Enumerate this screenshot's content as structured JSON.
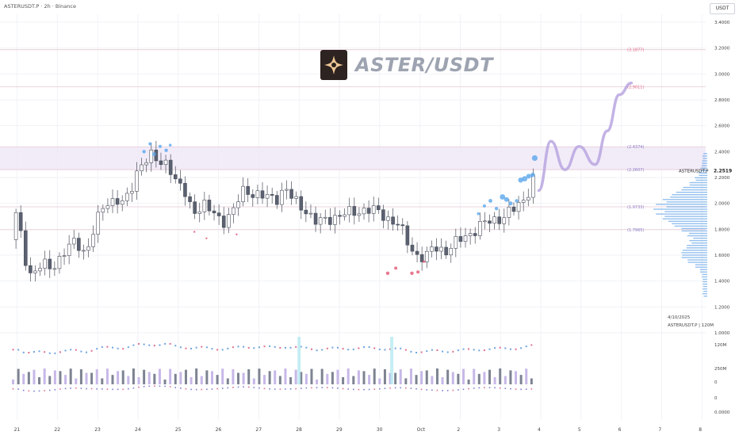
{
  "header": {
    "title": "ASTERUSDT.P · 2h · Binance"
  },
  "currency_button": "USDT",
  "banner": {
    "title": "ASTER/USDT",
    "logo_icon": "aster-star-logo-icon"
  },
  "price_label": {
    "symbol": "ASTERUSDT.P",
    "value": "2.2519"
  },
  "footnote": {
    "date": "4/10/2025",
    "text": "ASTERUSDT.P | 120M"
  },
  "colors": {
    "up": "#ffffff",
    "down": "#5b6170",
    "wick": "#4a4f5c",
    "projection": "#b8a6e0",
    "zone": "#efe7f6",
    "level": "#e6c9d3",
    "bubble": "#5aa6ec",
    "red_marker": "#e04a6a",
    "volume_profile": "#3d8de0",
    "grid": "#f0f2f5",
    "volume_up": "#c7b8e8",
    "volume_down": "#7d8391"
  },
  "chart_data": {
    "type": "candlestick",
    "title": "",
    "xlabel": "",
    "ylabel": "",
    "x_ticks": [
      "21",
      "22",
      "23",
      "24",
      "25",
      "26",
      "27",
      "28",
      "29",
      "30",
      "Oct",
      "2",
      "3",
      "4",
      "5",
      "6",
      "7",
      "8"
    ],
    "y_ticks": [
      "3.4000",
      "3.2000",
      "3.0000",
      "2.8000",
      "2.6000",
      "2.4000",
      "2.2000",
      "2.0000",
      "1.8000",
      "1.6000",
      "1.4000",
      "1.2000",
      "1.0000"
    ],
    "ylim": [
      1.0,
      3.4
    ],
    "levels": [
      {
        "label": "3.1877",
        "value": 3.1877,
        "color": "#e06c8b"
      },
      {
        "label": "2.9011",
        "value": 2.9011,
        "color": "#e06c8b"
      },
      {
        "label": "2.4374",
        "value": 2.4374,
        "color": "#8c7dc8"
      },
      {
        "label": "2.2607",
        "value": 2.2607,
        "color": "#8c7dc8"
      },
      {
        "label": "1.9733",
        "value": 1.9733,
        "color": "#8c7dc8"
      },
      {
        "label": "1.7965",
        "value": 1.7965,
        "color": "#8c7dc8"
      }
    ],
    "supply_zone": [
      2.2607,
      2.4374
    ],
    "close_path": [
      {
        "t": 0.0,
        "p": 1.72
      },
      {
        "t": 0.15,
        "p": 1.95
      },
      {
        "t": 0.3,
        "p": 1.62
      },
      {
        "t": 0.5,
        "p": 1.45
      },
      {
        "t": 0.75,
        "p": 1.52
      },
      {
        "t": 1.0,
        "p": 1.5
      },
      {
        "t": 1.3,
        "p": 1.62
      },
      {
        "t": 1.6,
        "p": 1.7
      },
      {
        "t": 1.85,
        "p": 1.62
      },
      {
        "t": 2.0,
        "p": 1.75
      },
      {
        "t": 2.3,
        "p": 1.98
      },
      {
        "t": 2.6,
        "p": 2.05
      },
      {
        "t": 2.8,
        "p": 1.98
      },
      {
        "t": 3.0,
        "p": 2.12
      },
      {
        "t": 3.2,
        "p": 2.32
      },
      {
        "t": 3.5,
        "p": 2.36
      },
      {
        "t": 3.7,
        "p": 2.3
      },
      {
        "t": 3.9,
        "p": 2.34
      },
      {
        "t": 4.05,
        "p": 2.18
      },
      {
        "t": 4.3,
        "p": 2.08
      },
      {
        "t": 4.5,
        "p": 1.95
      },
      {
        "t": 4.8,
        "p": 1.98
      },
      {
        "t": 5.0,
        "p": 1.92
      },
      {
        "t": 5.3,
        "p": 1.87
      },
      {
        "t": 5.5,
        "p": 1.93
      },
      {
        "t": 5.8,
        "p": 2.12
      },
      {
        "t": 6.0,
        "p": 2.08
      },
      {
        "t": 6.3,
        "p": 2.04
      },
      {
        "t": 6.6,
        "p": 2.05
      },
      {
        "t": 6.8,
        "p": 2.12
      },
      {
        "t": 7.0,
        "p": 2.02
      },
      {
        "t": 7.3,
        "p": 1.96
      },
      {
        "t": 7.6,
        "p": 1.84
      },
      {
        "t": 8.0,
        "p": 1.9
      },
      {
        "t": 8.4,
        "p": 1.92
      },
      {
        "t": 8.8,
        "p": 1.96
      },
      {
        "t": 9.0,
        "p": 1.94
      },
      {
        "t": 9.3,
        "p": 1.9
      },
      {
        "t": 9.6,
        "p": 1.84
      },
      {
        "t": 9.9,
        "p": 1.66
      },
      {
        "t": 10.1,
        "p": 1.6
      },
      {
        "t": 10.3,
        "p": 1.58
      },
      {
        "t": 10.5,
        "p": 1.66
      },
      {
        "t": 10.8,
        "p": 1.64
      },
      {
        "t": 11.0,
        "p": 1.68
      },
      {
        "t": 11.3,
        "p": 1.75
      },
      {
        "t": 11.6,
        "p": 1.82
      },
      {
        "t": 11.9,
        "p": 1.86
      },
      {
        "t": 12.2,
        "p": 1.9
      },
      {
        "t": 12.5,
        "p": 1.95
      },
      {
        "t": 12.75,
        "p": 2.04
      },
      {
        "t": 12.95,
        "p": 2.18
      },
      {
        "t": 13.05,
        "p": 2.3
      }
    ],
    "projection": [
      {
        "t": 13.1,
        "p": 2.1
      },
      {
        "t": 13.4,
        "p": 2.48
      },
      {
        "t": 13.75,
        "p": 2.26
      },
      {
        "t": 14.1,
        "p": 2.44
      },
      {
        "t": 14.5,
        "p": 2.3
      },
      {
        "t": 14.8,
        "p": 2.56
      },
      {
        "t": 15.1,
        "p": 2.84
      },
      {
        "t": 15.4,
        "p": 2.93
      }
    ],
    "bubbles": [
      {
        "t": 3.3,
        "p": 2.4,
        "r": 2.2
      },
      {
        "t": 3.45,
        "p": 2.46,
        "r": 2.0
      },
      {
        "t": 3.55,
        "p": 2.38,
        "r": 2.4
      },
      {
        "t": 3.7,
        "p": 2.44,
        "r": 2.0
      },
      {
        "t": 3.85,
        "p": 2.41,
        "r": 2.2
      },
      {
        "t": 3.95,
        "p": 2.45,
        "r": 1.8
      },
      {
        "t": 11.6,
        "p": 1.92,
        "r": 1.8
      },
      {
        "t": 11.75,
        "p": 1.98,
        "r": 2.0
      },
      {
        "t": 11.9,
        "p": 2.02,
        "r": 2.4
      },
      {
        "t": 12.05,
        "p": 1.96,
        "r": 2.2
      },
      {
        "t": 12.2,
        "p": 2.05,
        "r": 3.4
      },
      {
        "t": 12.3,
        "p": 2.03,
        "r": 3.0
      },
      {
        "t": 12.4,
        "p": 2.0,
        "r": 2.6
      },
      {
        "t": 12.55,
        "p": 2.02,
        "r": 2.2
      },
      {
        "t": 12.65,
        "p": 2.18,
        "r": 3.2
      },
      {
        "t": 12.75,
        "p": 2.19,
        "r": 3.4
      },
      {
        "t": 12.85,
        "p": 2.21,
        "r": 3.0
      },
      {
        "t": 12.95,
        "p": 2.22,
        "r": 2.8
      },
      {
        "t": 13.0,
        "p": 2.35,
        "r": 3.6
      }
    ],
    "red_markers": [
      {
        "t": 4.55,
        "p": 1.78,
        "r": 1.2
      },
      {
        "t": 4.85,
        "p": 1.73,
        "r": 1.2
      },
      {
        "t": 5.6,
        "p": 1.76,
        "r": 1.2
      },
      {
        "t": 9.35,
        "p": 1.46,
        "r": 2.2
      },
      {
        "t": 9.55,
        "p": 1.5,
        "r": 2.0
      },
      {
        "t": 9.95,
        "p": 1.46,
        "r": 2.2
      },
      {
        "t": 10.1,
        "p": 1.47,
        "r": 2.0
      },
      {
        "t": 10.25,
        "p": 1.55,
        "r": 1.6
      }
    ],
    "volume_profile_range": [
      1.28,
      2.4
    ],
    "x_range": [
      0,
      17.6
    ]
  }
}
